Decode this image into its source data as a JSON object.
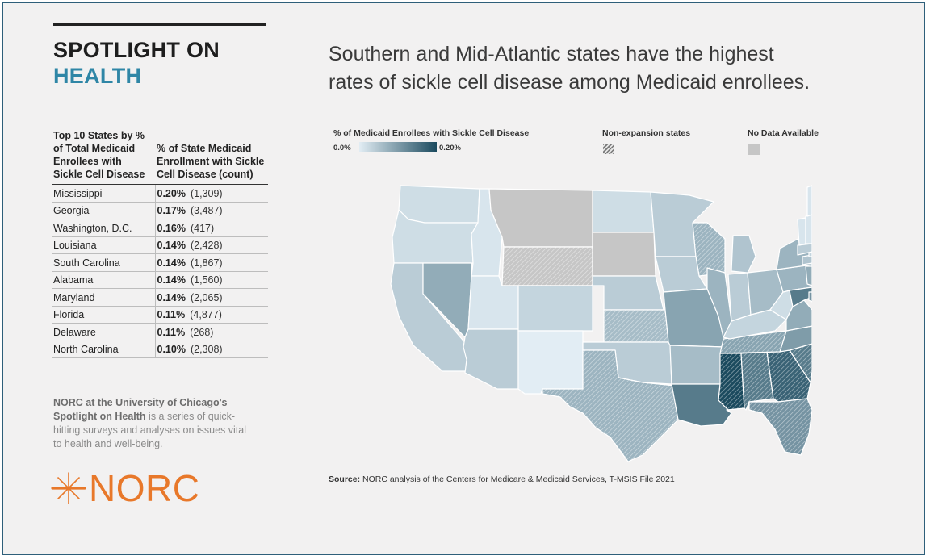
{
  "brand": {
    "line1": "SPOTLIGHT ON",
    "line2": "HEALTH"
  },
  "headline": {
    "line1": "Southern and Mid-Atlantic states have the highest",
    "line2": "rates of sickle cell disease among Medicaid enrollees."
  },
  "table": {
    "header_state": "Top 10 States by % of Total Medicaid Enrollees with Sickle Cell Disease",
    "header_pct": "% of State Medicaid Enrollment with Sickle Cell Disease (count)",
    "rows": [
      {
        "state": "Mississippi",
        "pct": "0.20%",
        "count": "(1,309)"
      },
      {
        "state": "Georgia",
        "pct": "0.17%",
        "count": "(3,487)"
      },
      {
        "state": "Washington, D.C.",
        "pct": "0.16%",
        "count": "(417)"
      },
      {
        "state": "Louisiana",
        "pct": "0.14%",
        "count": "(2,428)"
      },
      {
        "state": "South Carolina",
        "pct": "0.14%",
        "count": "(1,867)"
      },
      {
        "state": "Alabama",
        "pct": "0.14%",
        "count": "(1,560)"
      },
      {
        "state": "Maryland",
        "pct": "0.14%",
        "count": "(2,065)"
      },
      {
        "state": "Florida",
        "pct": "0.11%",
        "count": "(4,877)"
      },
      {
        "state": "Delaware",
        "pct": "0.11%",
        "count": "(268)"
      },
      {
        "state": "North Carolina",
        "pct": "0.10%",
        "count": "(2,308)"
      }
    ]
  },
  "blurb": {
    "org": "NORC at the University of Chicago's Spotlight on Health",
    "text": " is a series of quick-hitting surveys and analyses on issues vital to health and well-being."
  },
  "logo": {
    "text": "NORC"
  },
  "legend": {
    "gradient_title": "% of Medicaid Enrollees with Sickle Cell Disease",
    "gradient_min": "0.0%",
    "gradient_max": "0.20%",
    "hatch_title": "Non-expansion states",
    "nodata_title": "No Data Available"
  },
  "source": {
    "label": "Source:",
    "text": " NORC analysis of the Centers for Medicare & Medicaid Services, T-MSIS File 2021"
  },
  "colors": {
    "accent_blue": "#2f86a6",
    "norc_orange": "#e8782a",
    "scale_low": "#e2edf4",
    "scale_high": "#1b4a5e",
    "nodata": "#c6c6c6",
    "background": "#f2f1f1",
    "border": "#2e5f7a"
  },
  "map_states": [
    {
      "abbr": "WA",
      "value": 0.02
    },
    {
      "abbr": "OR",
      "value": 0.02
    },
    {
      "abbr": "CA",
      "value": 0.04
    },
    {
      "abbr": "ID",
      "value": 0.01
    },
    {
      "abbr": "NV",
      "value": 0.08
    },
    {
      "abbr": "MT",
      "nodata": true
    },
    {
      "abbr": "WY",
      "nodata": true,
      "nonexpansion": true
    },
    {
      "abbr": "UT",
      "value": 0.01
    },
    {
      "abbr": "AZ",
      "value": 0.04
    },
    {
      "abbr": "CO",
      "value": 0.03
    },
    {
      "abbr": "NM",
      "value": 0.0
    },
    {
      "abbr": "ND",
      "value": 0.02
    },
    {
      "abbr": "SD",
      "nodata": true
    },
    {
      "abbr": "NE",
      "value": 0.04
    },
    {
      "abbr": "KS",
      "value": 0.06,
      "nonexpansion": true
    },
    {
      "abbr": "OK",
      "value": 0.04
    },
    {
      "abbr": "TX",
      "value": 0.07,
      "nonexpansion": true
    },
    {
      "abbr": "MN",
      "value": 0.04
    },
    {
      "abbr": "WI",
      "value": 0.07,
      "nonexpansion": true
    },
    {
      "abbr": "IA",
      "value": 0.04
    },
    {
      "abbr": "MO",
      "value": 0.09
    },
    {
      "abbr": "AR",
      "value": 0.06
    },
    {
      "abbr": "LA",
      "value": 0.14
    },
    {
      "abbr": "MS",
      "value": 0.2,
      "nonexpansion": true
    },
    {
      "abbr": "AL",
      "value": 0.14,
      "nonexpansion": true
    },
    {
      "abbr": "GA",
      "value": 0.17,
      "nonexpansion": true
    },
    {
      "abbr": "FL",
      "value": 0.11,
      "nonexpansion": true
    },
    {
      "abbr": "SC",
      "value": 0.14,
      "nonexpansion": true
    },
    {
      "abbr": "NC",
      "value": 0.1
    },
    {
      "abbr": "TN",
      "value": 0.09,
      "nonexpansion": true
    },
    {
      "abbr": "KY",
      "value": 0.03
    },
    {
      "abbr": "IL",
      "value": 0.07
    },
    {
      "abbr": "IN",
      "value": 0.04
    },
    {
      "abbr": "MI",
      "value": 0.05
    },
    {
      "abbr": "OH",
      "value": 0.06
    },
    {
      "abbr": "WV",
      "value": 0.02
    },
    {
      "abbr": "VA",
      "value": 0.08
    },
    {
      "abbr": "PA",
      "value": 0.07
    },
    {
      "abbr": "NY",
      "value": 0.07
    },
    {
      "abbr": "MD",
      "value": 0.14
    },
    {
      "abbr": "DE",
      "value": 0.11
    },
    {
      "abbr": "NJ",
      "value": 0.08
    },
    {
      "abbr": "CT",
      "value": 0.05
    },
    {
      "abbr": "RI",
      "value": 0.03
    },
    {
      "abbr": "MA",
      "value": 0.04
    },
    {
      "abbr": "VT",
      "value": 0.01
    },
    {
      "abbr": "NH",
      "value": 0.01
    },
    {
      "abbr": "ME",
      "value": 0.01
    }
  ]
}
